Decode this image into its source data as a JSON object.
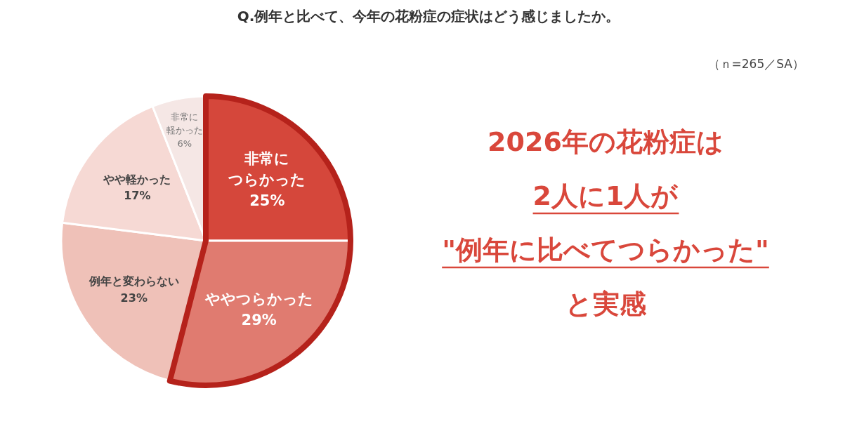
{
  "chart_data": {
    "type": "pie",
    "title": "Q.例年と比べて、今年の花粉症の症状はどう感じましたか。",
    "subtitle": "（ｎ=265／SA）",
    "categories": [
      "非常につらかった",
      "ややつらかった",
      "例年と変わらない",
      "やや軽かった",
      "非常に軽かった"
    ],
    "values": [
      25,
      29,
      23,
      17,
      6
    ],
    "value_labels": [
      "25%",
      "29%",
      "23%",
      "17%",
      "6%"
    ],
    "colors": [
      "#d5473b",
      "#e07b70",
      "#efc1b8",
      "#f6d9d4",
      "#f5e7e5"
    ],
    "annotations": [
      "2026年の花粉症は",
      "2人に1人が",
      "\"例年に比べてつらかった\"",
      "と実感"
    ]
  }
}
